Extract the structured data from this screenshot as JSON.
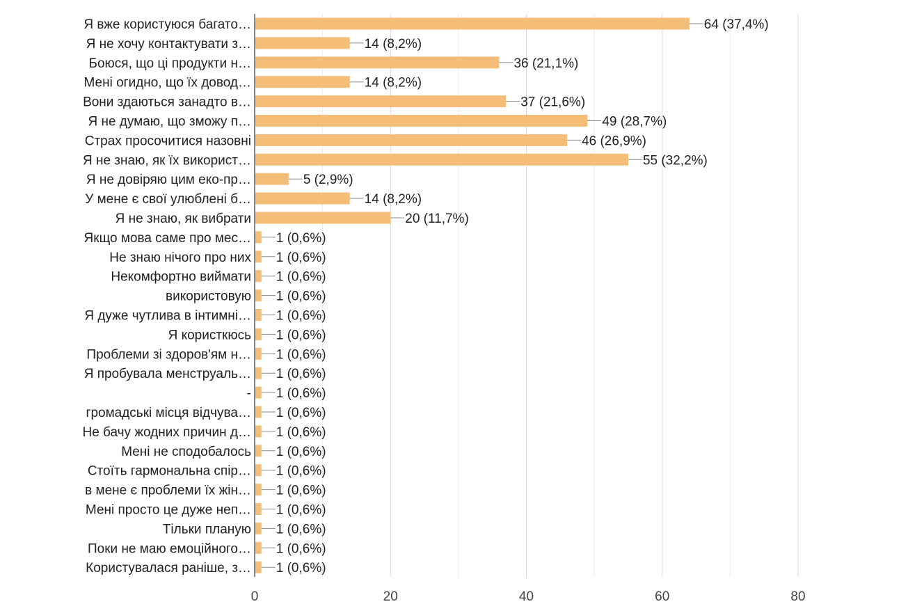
{
  "chart_data": {
    "type": "bar",
    "orientation": "horizontal",
    "title": "",
    "xlabel": "",
    "ylabel": "",
    "xlim": [
      0,
      80
    ],
    "x_ticks": [
      0,
      20,
      40,
      60,
      80
    ],
    "grid": true,
    "bar_color": "#f5be78",
    "categories": [
      "Я вже користуюся багато…",
      "Я не хочу контактувати з…",
      "Боюся, що ці продукти н…",
      "Мені огидно, що їх довод…",
      "Вони здаються занадто в…",
      "Я не думаю, що зможу п…",
      "Страх просочитися назовні",
      "Я не знаю, як їх використ…",
      "Я не довіряю цим еко-пр…",
      "У мене є свої улюблені б…",
      "Я не знаю, як вибрати",
      "Якщо мова саме про мес…",
      "Не знаю нічого про них",
      "Некомфортно виймати",
      "використовую",
      "Я дуже чутлива в інтимні…",
      "Я користкюсь",
      "Проблеми зі здоров'ям н…",
      "Я пробувала менструаль…",
      "-",
      "громадські місця відчува…",
      "Не бачу жодних причин д…",
      "Мені не сподобалось",
      "Стоїть гармональна спір…",
      "в мене є проблеми їх жін…",
      "Мені просто це дуже неп…",
      "Тільки планую",
      "Поки не маю емоційного…",
      "Користувалася раніше, з…"
    ],
    "values": [
      64,
      14,
      36,
      14,
      37,
      49,
      46,
      55,
      5,
      14,
      20,
      1,
      1,
      1,
      1,
      1,
      1,
      1,
      1,
      1,
      1,
      1,
      1,
      1,
      1,
      1,
      1,
      1,
      1
    ],
    "data_labels": [
      "64 (37,4%)",
      "14 (8,2%)",
      "36 (21,1%)",
      "14 (8,2%)",
      "37 (21,6%)",
      "49 (28,7%)",
      "46 (26,9%)",
      "55 (32,2%)",
      "5 (2,9%)",
      "14 (8,2%)",
      "20 (11,7%)",
      "1 (0,6%)",
      "1 (0,6%)",
      "1 (0,6%)",
      "1 (0,6%)",
      "1 (0,6%)",
      "1 (0,6%)",
      "1 (0,6%)",
      "1 (0,6%)",
      "1 (0,6%)",
      "1 (0,6%)",
      "1 (0,6%)",
      "1 (0,6%)",
      "1 (0,6%)",
      "1 (0,6%)",
      "1 (0,6%)",
      "1 (0,6%)",
      "1 (0,6%)",
      "1 (0,6%)"
    ]
  }
}
